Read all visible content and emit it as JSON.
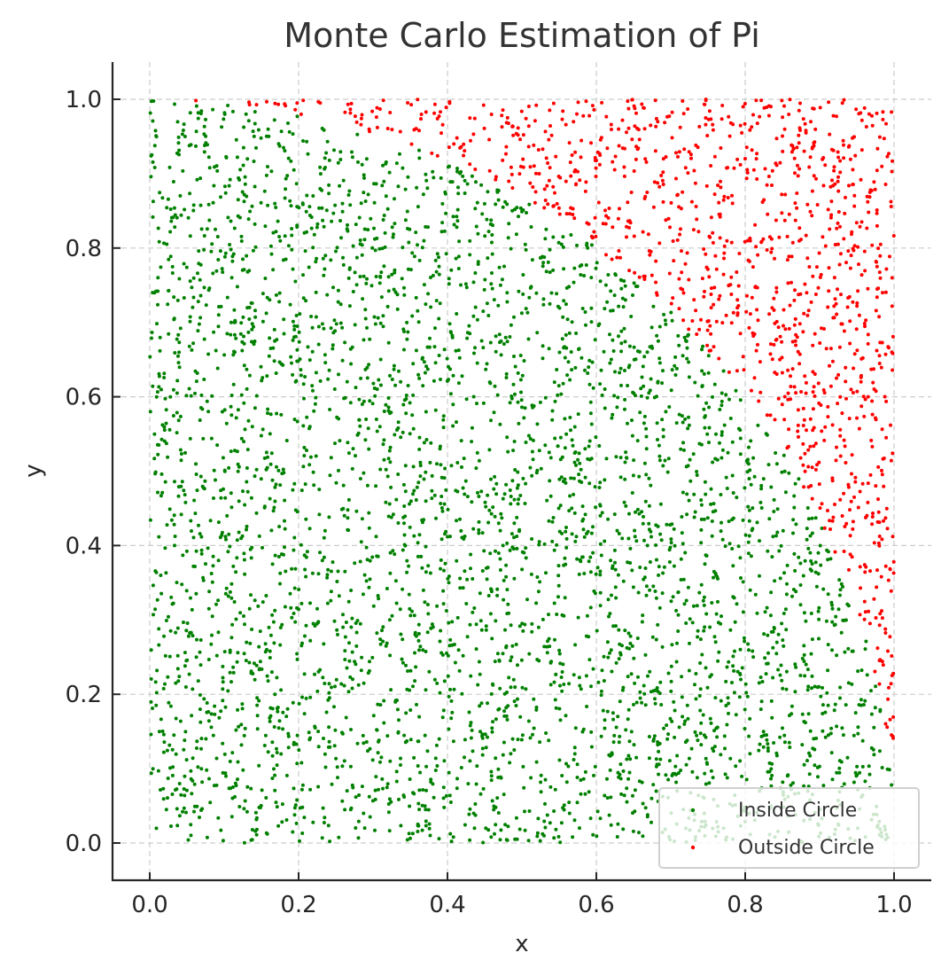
{
  "chart_data": {
    "type": "scatter",
    "title": "Monte Carlo Estimation of Pi",
    "xlabel": "x",
    "ylabel": "y",
    "xlim": [
      -0.05,
      1.05
    ],
    "ylim": [
      -0.05,
      1.05
    ],
    "xticks": [
      0.0,
      0.2,
      0.4,
      0.6,
      0.8,
      1.0
    ],
    "yticks": [
      0.0,
      0.2,
      0.4,
      0.6,
      0.8,
      1.0
    ],
    "xtick_labels": [
      "0.0",
      "0.2",
      "0.4",
      "0.6",
      "0.8",
      "1.0"
    ],
    "ytick_labels": [
      "0.0",
      "0.2",
      "0.4",
      "0.6",
      "0.8",
      "1.0"
    ],
    "grid": true,
    "legend_position": "lower right",
    "num_points_estimate": 5000,
    "circle": {
      "center": [
        0,
        0
      ],
      "radius": 1
    },
    "series": [
      {
        "name": "Inside Circle",
        "color": "#008000",
        "rule": "x^2 + y^2 <= 1",
        "approx_fraction": 0.785
      },
      {
        "name": "Outside Circle",
        "color": "#ff0000",
        "rule": "x^2 + y^2 > 1",
        "approx_fraction": 0.215
      }
    ]
  },
  "legend": {
    "items": [
      {
        "label": "Inside Circle",
        "color": "#008000"
      },
      {
        "label": "Outside Circle",
        "color": "#ff0000"
      }
    ]
  }
}
